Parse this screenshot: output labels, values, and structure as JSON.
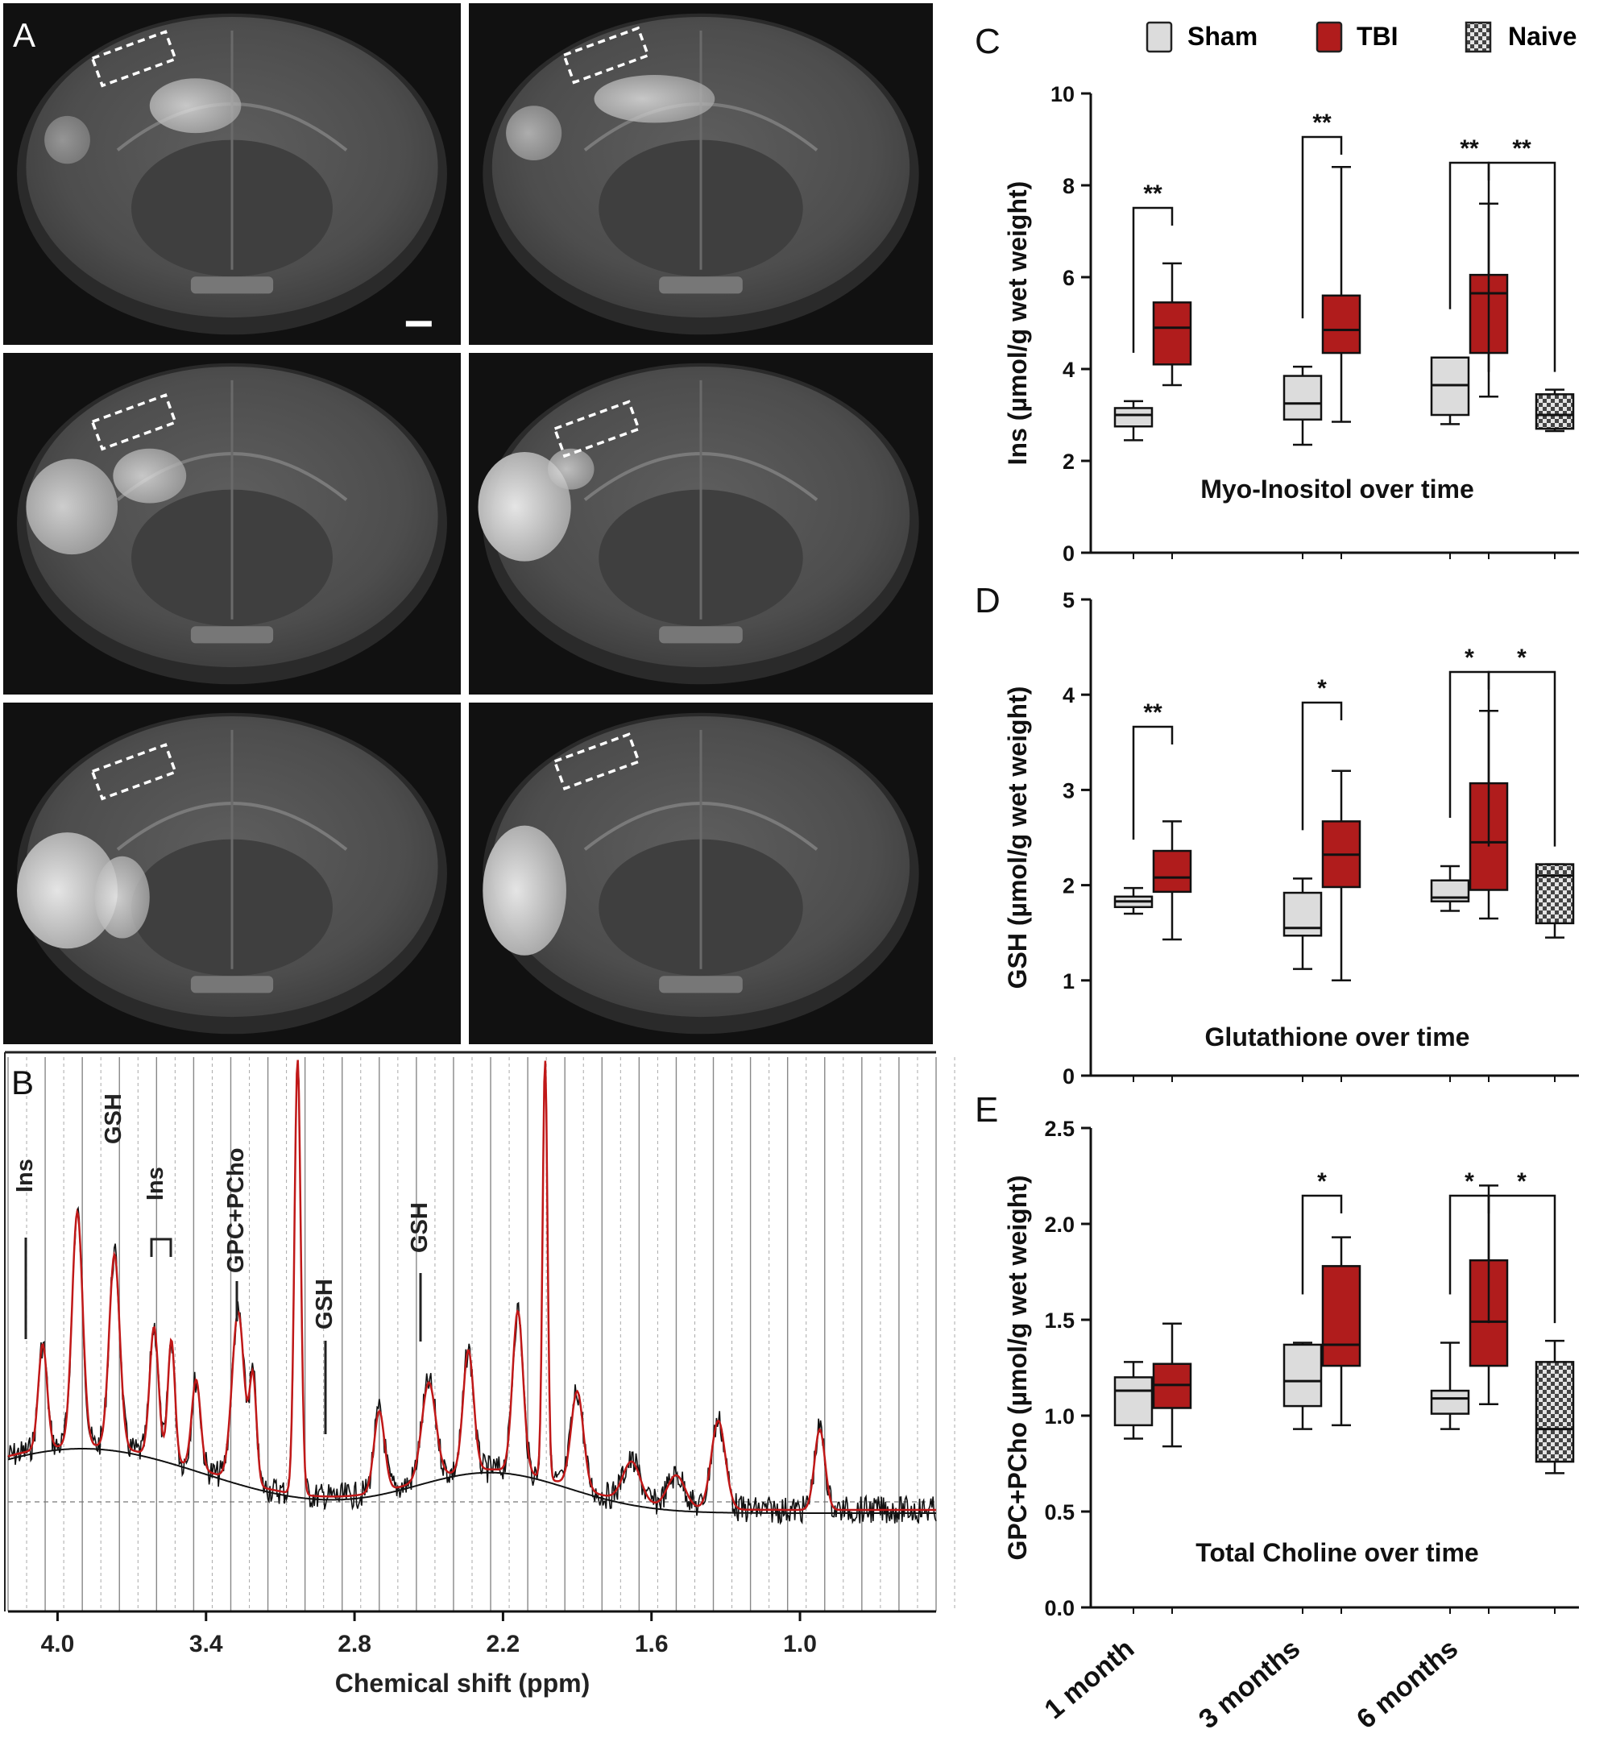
{
  "panel_letters": {
    "A": "A",
    "B": "B",
    "C": "C",
    "D": "D",
    "E": "E"
  },
  "colors": {
    "sham": "#dcdcdc",
    "tbi": "#b01c1c",
    "naive_bg": "#d0d0d0",
    "fit_line": "#c01818",
    "spectrum": "#111111",
    "axis": "#111111",
    "mri_bg": "#101010"
  },
  "legend": {
    "items": [
      {
        "label": "Sham",
        "swatch": "sham"
      },
      {
        "label": "TBI",
        "swatch": "tbi"
      },
      {
        "label": "Naive",
        "swatch": "naive"
      }
    ]
  },
  "mri": {
    "description_icons": [
      "mri-slice-1",
      "mri-slice-2",
      "mri-slice-3",
      "mri-slice-4",
      "mri-slice-5",
      "mri-slice-6"
    ]
  },
  "spectrum": {
    "xlabel": "Chemical shift (ppm)",
    "x_range": [
      4.2,
      0.45
    ],
    "ticks": [
      {
        "value": 4.0,
        "label": "4.0"
      },
      {
        "value": 3.4,
        "label": "3.4"
      },
      {
        "value": 2.8,
        "label": "2.8"
      },
      {
        "value": 2.2,
        "label": "2.2"
      },
      {
        "value": 1.6,
        "label": "1.6"
      },
      {
        "value": 1.0,
        "label": "1.0"
      }
    ],
    "annotations": [
      {
        "label": "Ins",
        "ppm": 4.06
      },
      {
        "label": "GSH",
        "ppm": 3.77
      },
      {
        "label": "Ins",
        "ppm": 3.54
      },
      {
        "label": "GPC+PCho",
        "ppm": 3.22
      },
      {
        "label": "GSH",
        "ppm": 2.93
      },
      {
        "label": "GSH",
        "ppm": 2.55
      }
    ],
    "peaks_ppm": [
      4.06,
      3.92,
      3.77,
      3.61,
      3.54,
      3.44,
      3.27,
      3.22,
      3.03,
      2.7,
      2.5,
      2.35,
      2.14,
      2.05,
      1.9,
      1.5,
      1.33,
      0.92
    ]
  },
  "chart_data": [
    {
      "panel": "C",
      "type": "box",
      "title": "Myo-Inositol over time",
      "ylabel": "Ins (µmol/g wet weight)",
      "ylim": [
        0,
        10
      ],
      "yticks": [
        0,
        2,
        4,
        6,
        8,
        10
      ],
      "categories": [
        "1 month",
        "3 months",
        "6 months"
      ],
      "series": [
        {
          "name": "Sham",
          "boxes": [
            {
              "category": "1 month",
              "min": 2.45,
              "q1": 2.75,
              "median": 3.0,
              "q3": 3.15,
              "max": 3.3
            },
            {
              "category": "3 months",
              "min": 2.35,
              "q1": 2.9,
              "median": 3.25,
              "q3": 3.85,
              "max": 4.05
            },
            {
              "category": "6 months",
              "min": 2.8,
              "q1": 3.0,
              "median": 3.65,
              "q3": 4.25,
              "max": 4.25
            }
          ]
        },
        {
          "name": "TBI",
          "boxes": [
            {
              "category": "1 month",
              "min": 3.65,
              "q1": 4.1,
              "median": 4.9,
              "q3": 5.45,
              "max": 6.3
            },
            {
              "category": "3 months",
              "min": 2.85,
              "q1": 4.35,
              "median": 4.85,
              "q3": 5.6,
              "max": 8.4
            },
            {
              "category": "6 months",
              "min": 3.4,
              "q1": 4.35,
              "median": 5.65,
              "q3": 6.05,
              "max": 7.6
            }
          ]
        },
        {
          "name": "Naive",
          "boxes": [
            {
              "category": "6 months",
              "min": 2.65,
              "q1": 2.7,
              "median": 3.0,
              "q3": 3.45,
              "max": 3.55
            }
          ]
        }
      ],
      "significance": [
        {
          "from": "Sham",
          "to": "TBI",
          "category": "1 month",
          "label": "**"
        },
        {
          "from": "Sham",
          "to": "TBI",
          "category": "3 months",
          "label": "**"
        },
        {
          "from": "Sham",
          "to": "TBI",
          "category": "6 months",
          "label": "**"
        },
        {
          "from": "TBI",
          "to": "Naive",
          "category": "6 months",
          "label": "**"
        }
      ]
    },
    {
      "panel": "D",
      "type": "box",
      "title": "Glutathione over time",
      "ylabel": "GSH (µmol/g wet weight)",
      "ylim": [
        0,
        5
      ],
      "yticks": [
        0,
        1,
        2,
        3,
        4,
        5
      ],
      "categories": [
        "1 month",
        "3 months",
        "6 months"
      ],
      "series": [
        {
          "name": "Sham",
          "boxes": [
            {
              "category": "1 month",
              "min": 1.7,
              "q1": 1.77,
              "median": 1.83,
              "q3": 1.88,
              "max": 1.97
            },
            {
              "category": "3 months",
              "min": 1.12,
              "q1": 1.47,
              "median": 1.55,
              "q3": 1.92,
              "max": 2.07
            },
            {
              "category": "6 months",
              "min": 1.73,
              "q1": 1.83,
              "median": 1.87,
              "q3": 2.05,
              "max": 2.2
            }
          ]
        },
        {
          "name": "TBI",
          "boxes": [
            {
              "category": "1 month",
              "min": 1.43,
              "q1": 1.93,
              "median": 2.08,
              "q3": 2.36,
              "max": 2.67
            },
            {
              "category": "3 months",
              "min": 1.0,
              "q1": 1.98,
              "median": 2.32,
              "q3": 2.67,
              "max": 3.2
            },
            {
              "category": "6 months",
              "min": 1.65,
              "q1": 1.95,
              "median": 2.45,
              "q3": 3.07,
              "max": 3.83
            }
          ]
        },
        {
          "name": "Naive",
          "boxes": [
            {
              "category": "6 months",
              "min": 1.45,
              "q1": 1.6,
              "median": 2.1,
              "q3": 2.22,
              "max": 2.22
            }
          ]
        }
      ],
      "significance": [
        {
          "from": "Sham",
          "to": "TBI",
          "category": "1 month",
          "label": "**"
        },
        {
          "from": "Sham",
          "to": "TBI",
          "category": "3 months",
          "label": "*"
        },
        {
          "from": "Sham",
          "to": "TBI",
          "category": "6 months",
          "label": "*"
        },
        {
          "from": "TBI",
          "to": "Naive",
          "category": "6 months",
          "label": "*"
        }
      ]
    },
    {
      "panel": "E",
      "type": "box",
      "title": "Total Choline over time",
      "ylabel": "GPC+PCho (µmol/g wet weight)",
      "ylim": [
        0,
        2.5
      ],
      "yticks": [
        0.0,
        0.5,
        1.0,
        1.5,
        2.0,
        2.5
      ],
      "categories": [
        "1 month",
        "3 months",
        "6 months"
      ],
      "series": [
        {
          "name": "Sham",
          "boxes": [
            {
              "category": "1 month",
              "min": 0.88,
              "q1": 0.95,
              "median": 1.13,
              "q3": 1.2,
              "max": 1.28
            },
            {
              "category": "3 months",
              "min": 0.93,
              "q1": 1.05,
              "median": 1.18,
              "q3": 1.37,
              "max": 1.38
            },
            {
              "category": "6 months",
              "min": 0.93,
              "q1": 1.01,
              "median": 1.09,
              "q3": 1.13,
              "max": 1.38
            }
          ]
        },
        {
          "name": "TBI",
          "boxes": [
            {
              "category": "1 month",
              "min": 0.84,
              "q1": 1.04,
              "median": 1.16,
              "q3": 1.27,
              "max": 1.48
            },
            {
              "category": "3 months",
              "min": 0.95,
              "q1": 1.26,
              "median": 1.37,
              "q3": 1.78,
              "max": 1.93
            },
            {
              "category": "6 months",
              "min": 1.06,
              "q1": 1.26,
              "median": 1.49,
              "q3": 1.81,
              "max": 2.2
            }
          ]
        },
        {
          "name": "Naive",
          "boxes": [
            {
              "category": "6 months",
              "min": 0.7,
              "q1": 0.76,
              "median": 0.93,
              "q3": 1.28,
              "max": 1.39
            }
          ]
        }
      ],
      "significance": [
        {
          "from": "Sham",
          "to": "TBI",
          "category": "3 months",
          "label": "*"
        },
        {
          "from": "Sham",
          "to": "TBI",
          "category": "6 months",
          "label": "*"
        },
        {
          "from": "TBI",
          "to": "Naive",
          "category": "6 months",
          "label": "*"
        }
      ]
    }
  ]
}
